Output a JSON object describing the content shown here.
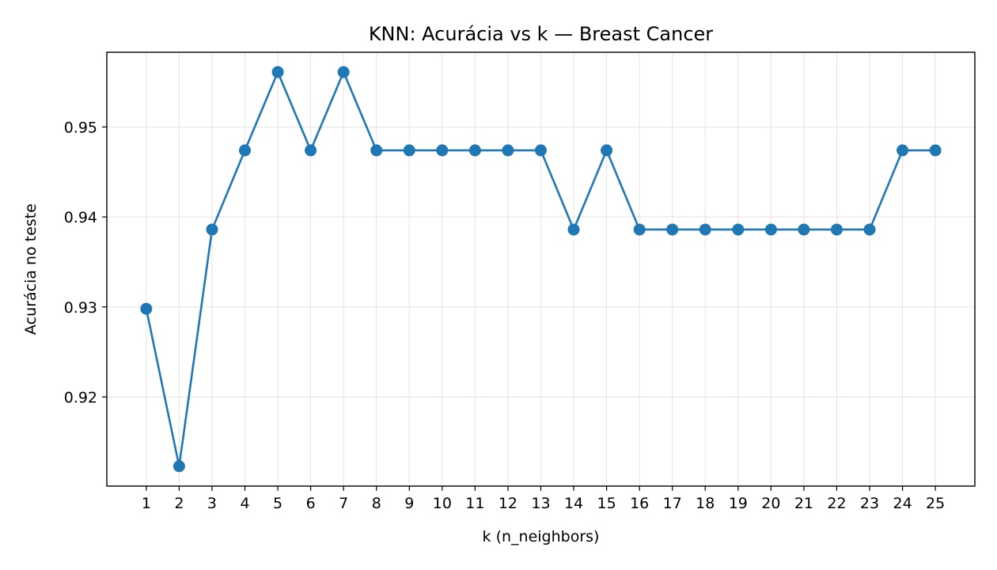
{
  "chart_data": {
    "type": "line",
    "title": "KNN: Acurácia vs k — Breast Cancer",
    "xlabel": "k (n_neighbors)",
    "ylabel": "Acurácia no teste",
    "x": [
      1,
      2,
      3,
      4,
      5,
      6,
      7,
      8,
      9,
      10,
      11,
      12,
      13,
      14,
      15,
      16,
      17,
      18,
      19,
      20,
      21,
      22,
      23,
      24,
      25
    ],
    "x_tick_labels": [
      "1",
      "2",
      "3",
      "4",
      "5",
      "6",
      "7",
      "8",
      "9",
      "10",
      "11",
      "12",
      "13",
      "14",
      "15",
      "16",
      "17",
      "18",
      "19",
      "20",
      "21",
      "22",
      "23",
      "24",
      "25"
    ],
    "series": [
      {
        "color": "#1f77b4",
        "marker": "circle",
        "values": [
          0.9298,
          0.9123,
          0.9386,
          0.9474,
          0.9561,
          0.9474,
          0.9561,
          0.9474,
          0.9474,
          0.9474,
          0.9474,
          0.9474,
          0.9474,
          0.9386,
          0.9474,
          0.9386,
          0.9386,
          0.9386,
          0.9386,
          0.9386,
          0.9386,
          0.9386,
          0.9386,
          0.9474,
          0.9474
        ]
      }
    ],
    "y_ticks": [
      0.92,
      0.93,
      0.94,
      0.95
    ],
    "y_tick_labels": [
      "0.92",
      "0.93",
      "0.94",
      "0.95"
    ],
    "xlim": [
      -0.2,
      26.2
    ],
    "ylim": [
      0.9101,
      0.9583
    ],
    "grid": true
  }
}
